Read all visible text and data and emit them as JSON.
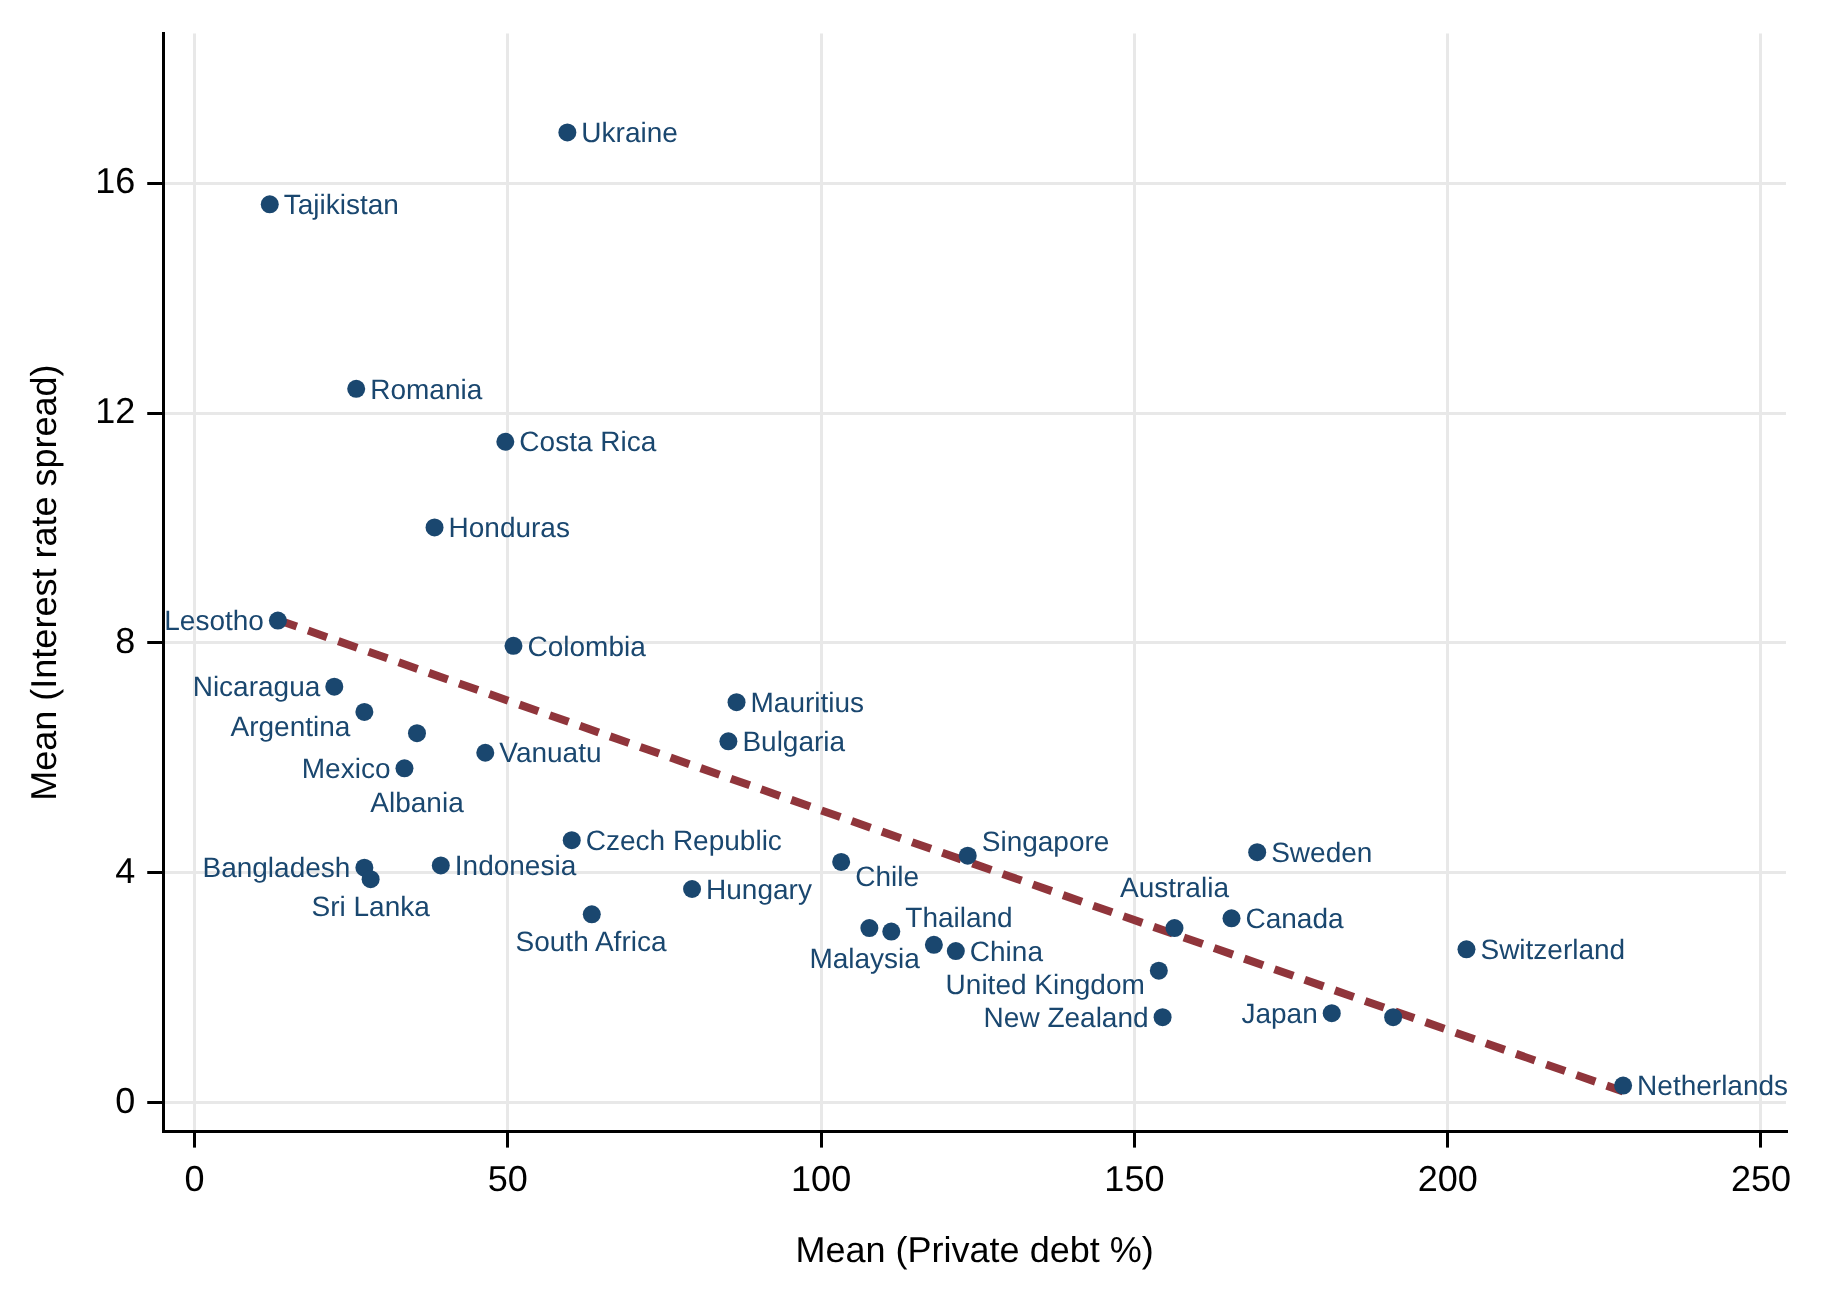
{
  "chart_data": {
    "type": "scatter",
    "xlabel": "Mean (Private debt %)",
    "ylabel": "Mean (Interest rate spread)",
    "xlim": [
      -5,
      254
    ],
    "xticks": [
      0,
      50,
      100,
      150,
      200,
      250
    ],
    "ylim": [
      -0.5,
      18.6
    ],
    "yticks": [
      0,
      4,
      8,
      12,
      16
    ],
    "grid": true,
    "marker": "circle",
    "series": [
      {
        "type": "scatter",
        "color": "#1a476f",
        "x": [
          59.5,
          12.0,
          25.8,
          49.6,
          38.3,
          13.3,
          50.9,
          22.3,
          27.1,
          35.5,
          46.4,
          33.5,
          86.5,
          85.2,
          60.2,
          27.1,
          28.1,
          39.3,
          79.4,
          63.4,
          103.2,
          123.4,
          107.7,
          111.2,
          118.0,
          121.5,
          156.4,
          165.5,
          153.9,
          154.5,
          181.5,
          191.3,
          169.6,
          203.0,
          228.0
        ],
        "values": [
          16.88,
          15.63,
          12.42,
          11.5,
          10.01,
          8.39,
          7.95,
          7.24,
          6.8,
          6.43,
          6.09,
          5.82,
          6.97,
          6.29,
          4.57,
          4.09,
          3.89,
          4.13,
          3.72,
          3.28,
          4.19,
          4.3,
          3.04,
          2.98,
          2.75,
          2.64,
          3.04,
          3.21,
          2.3,
          1.49,
          1.56,
          1.49,
          4.36,
          2.67,
          0.3
        ]
      },
      {
        "type": "line",
        "color": "#90353b",
        "line_style": "dashed",
        "marker": "none",
        "x": [
          13.3,
          228.0
        ],
        "values": [
          8.4,
          0.2
        ]
      }
    ],
    "annotations": [
      {
        "text": "Ukraine",
        "x": 59.5,
        "y": 16.88
      },
      {
        "text": "Tajikistan",
        "x": 12.0,
        "y": 15.63
      },
      {
        "text": "Romania",
        "x": 25.8,
        "y": 12.42
      },
      {
        "text": "Costa Rica",
        "x": 49.6,
        "y": 11.5
      },
      {
        "text": "Honduras",
        "x": 38.3,
        "y": 10.01
      },
      {
        "text": "Lesotho",
        "x": 13.3,
        "y": 8.39
      },
      {
        "text": "Colombia",
        "x": 50.9,
        "y": 7.95
      },
      {
        "text": "Nicaragua",
        "x": 22.3,
        "y": 7.24
      },
      {
        "text": "Argentina",
        "x": 27.1,
        "y": 6.8
      },
      {
        "text": "Albania",
        "x": 35.5,
        "y": 6.43
      },
      {
        "text": "Vanuatu",
        "x": 46.4,
        "y": 6.09
      },
      {
        "text": "Mexico",
        "x": 33.5,
        "y": 5.82
      },
      {
        "text": "Mauritius",
        "x": 86.5,
        "y": 6.97
      },
      {
        "text": "Bulgaria",
        "x": 85.2,
        "y": 6.29
      },
      {
        "text": "Czech Republic",
        "x": 60.2,
        "y": 4.57
      },
      {
        "text": "Bangladesh",
        "x": 27.1,
        "y": 4.09
      },
      {
        "text": "Sri Lanka",
        "x": 28.1,
        "y": 3.89
      },
      {
        "text": "Indonesia",
        "x": 39.3,
        "y": 4.13
      },
      {
        "text": "Hungary",
        "x": 79.4,
        "y": 3.72
      },
      {
        "text": "South Africa",
        "x": 63.4,
        "y": 3.28
      },
      {
        "text": "Chile",
        "x": 103.2,
        "y": 4.19
      },
      {
        "text": "Singapore",
        "x": 123.4,
        "y": 4.3
      },
      {
        "text": "Thailand",
        "x": 111.2,
        "y": 2.98
      },
      {
        "text": "Malaysia",
        "x": 118.0,
        "y": 2.75
      },
      {
        "text": "China",
        "x": 121.5,
        "y": 2.64
      },
      {
        "text": "Australia",
        "x": 156.4,
        "y": 3.04
      },
      {
        "text": "Canada",
        "x": 165.5,
        "y": 3.21
      },
      {
        "text": "United Kingdom",
        "x": 153.9,
        "y": 2.3
      },
      {
        "text": "New Zealand",
        "x": 154.5,
        "y": 1.49
      },
      {
        "text": "Japan",
        "x": 181.5,
        "y": 1.56
      },
      {
        "text": "Sweden",
        "x": 169.6,
        "y": 4.36
      },
      {
        "text": "Switzerland",
        "x": 203.0,
        "y": 2.67
      },
      {
        "text": "Netherlands",
        "x": 228.0,
        "y": 0.3
      }
    ]
  }
}
